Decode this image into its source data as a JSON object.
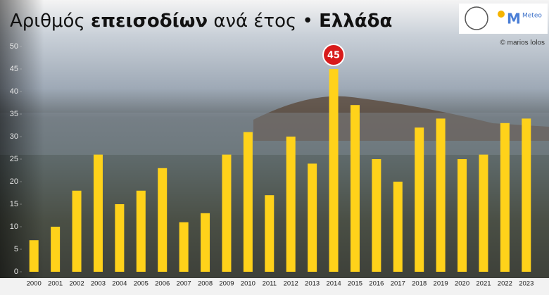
{
  "chart_data": {
    "type": "bar",
    "title": [
      "Αριθμός",
      "επεισοδίων",
      "ανά έτος •",
      "Ελλάδα"
    ],
    "credit": "© marios lolos",
    "logo_text": "Meteo",
    "categories": [
      "2000",
      "2001",
      "2002",
      "2003",
      "2004",
      "2005",
      "2006",
      "2007",
      "2008",
      "2009",
      "2010",
      "2011",
      "2012",
      "2013",
      "2014",
      "2015",
      "2016",
      "2017",
      "2018",
      "2019",
      "2020",
      "2021",
      "2022",
      "2023"
    ],
    "values": [
      7,
      10,
      18,
      26,
      15,
      18,
      23,
      11,
      13,
      26,
      31,
      17,
      30,
      24,
      45,
      37,
      25,
      20,
      32,
      34,
      25,
      26,
      33,
      34
    ],
    "color": "#ff5a00",
    "ylim": [
      0,
      50
    ],
    "yticks": [
      0,
      5,
      10,
      15,
      20,
      25,
      30,
      35,
      40,
      45,
      50
    ],
    "grid": false
  }
}
